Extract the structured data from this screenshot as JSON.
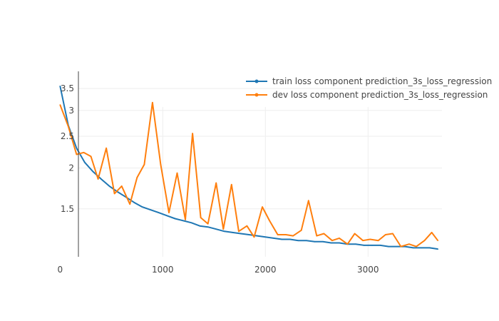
{
  "chart_data": {
    "type": "line",
    "scale_y": "log",
    "grid": true,
    "legend_position": "top-right",
    "xlim": [
      -30,
      3720
    ],
    "ylim": [
      1.07,
      3.95
    ],
    "x_ticks": [
      0,
      1000,
      2000,
      3000
    ],
    "x_tick_labels": [
      "0",
      "1000",
      "2000",
      "3000"
    ],
    "y_ticks": [
      1.5,
      2,
      2.5,
      3,
      3.5
    ],
    "y_tick_labels": [
      "1.5",
      "2",
      "2.5",
      "3",
      "3.5"
    ],
    "series": [
      {
        "name": "train loss component prediction_3s_loss_regression",
        "color": "#1f77b4",
        "x": [
          0,
          80,
          160,
          240,
          320,
          400,
          480,
          560,
          640,
          720,
          800,
          880,
          960,
          1040,
          1120,
          1200,
          1280,
          1360,
          1440,
          1520,
          1600,
          1680,
          1760,
          1840,
          1920,
          2000,
          2080,
          2160,
          2240,
          2320,
          2400,
          2480,
          2560,
          2640,
          2720,
          2800,
          2880,
          2960,
          3040,
          3120,
          3200,
          3280,
          3360,
          3440,
          3520,
          3600,
          3680
        ],
        "values": [
          3.56,
          2.7,
          2.3,
          2.08,
          1.95,
          1.85,
          1.76,
          1.69,
          1.63,
          1.57,
          1.52,
          1.49,
          1.46,
          1.43,
          1.4,
          1.38,
          1.36,
          1.33,
          1.32,
          1.3,
          1.28,
          1.27,
          1.26,
          1.25,
          1.24,
          1.23,
          1.22,
          1.21,
          1.21,
          1.2,
          1.2,
          1.19,
          1.19,
          1.18,
          1.18,
          1.17,
          1.17,
          1.16,
          1.16,
          1.16,
          1.15,
          1.15,
          1.15,
          1.14,
          1.14,
          1.14,
          1.13
        ]
      },
      {
        "name": "dev loss component prediction_3s_loss_regression",
        "color": "#ff7f0e",
        "x": [
          0,
          80,
          160,
          230,
          300,
          370,
          450,
          530,
          600,
          680,
          750,
          820,
          900,
          980,
          1060,
          1140,
          1220,
          1290,
          1370,
          1440,
          1520,
          1590,
          1670,
          1740,
          1820,
          1890,
          1970,
          2040,
          2120,
          2200,
          2270,
          2350,
          2420,
          2500,
          2570,
          2650,
          2720,
          2800,
          2870,
          2950,
          3020,
          3100,
          3170,
          3240,
          3320,
          3400,
          3470,
          3550,
          3620,
          3680
        ],
        "values": [
          3.12,
          2.68,
          2.2,
          2.23,
          2.17,
          1.85,
          2.3,
          1.67,
          1.76,
          1.55,
          1.87,
          2.05,
          3.17,
          2.05,
          1.46,
          1.93,
          1.39,
          2.55,
          1.41,
          1.35,
          1.8,
          1.3,
          1.78,
          1.28,
          1.33,
          1.23,
          1.52,
          1.38,
          1.25,
          1.25,
          1.24,
          1.29,
          1.59,
          1.24,
          1.26,
          1.2,
          1.22,
          1.17,
          1.26,
          1.2,
          1.21,
          1.2,
          1.25,
          1.26,
          1.15,
          1.17,
          1.15,
          1.2,
          1.27,
          1.2
        ]
      }
    ]
  }
}
